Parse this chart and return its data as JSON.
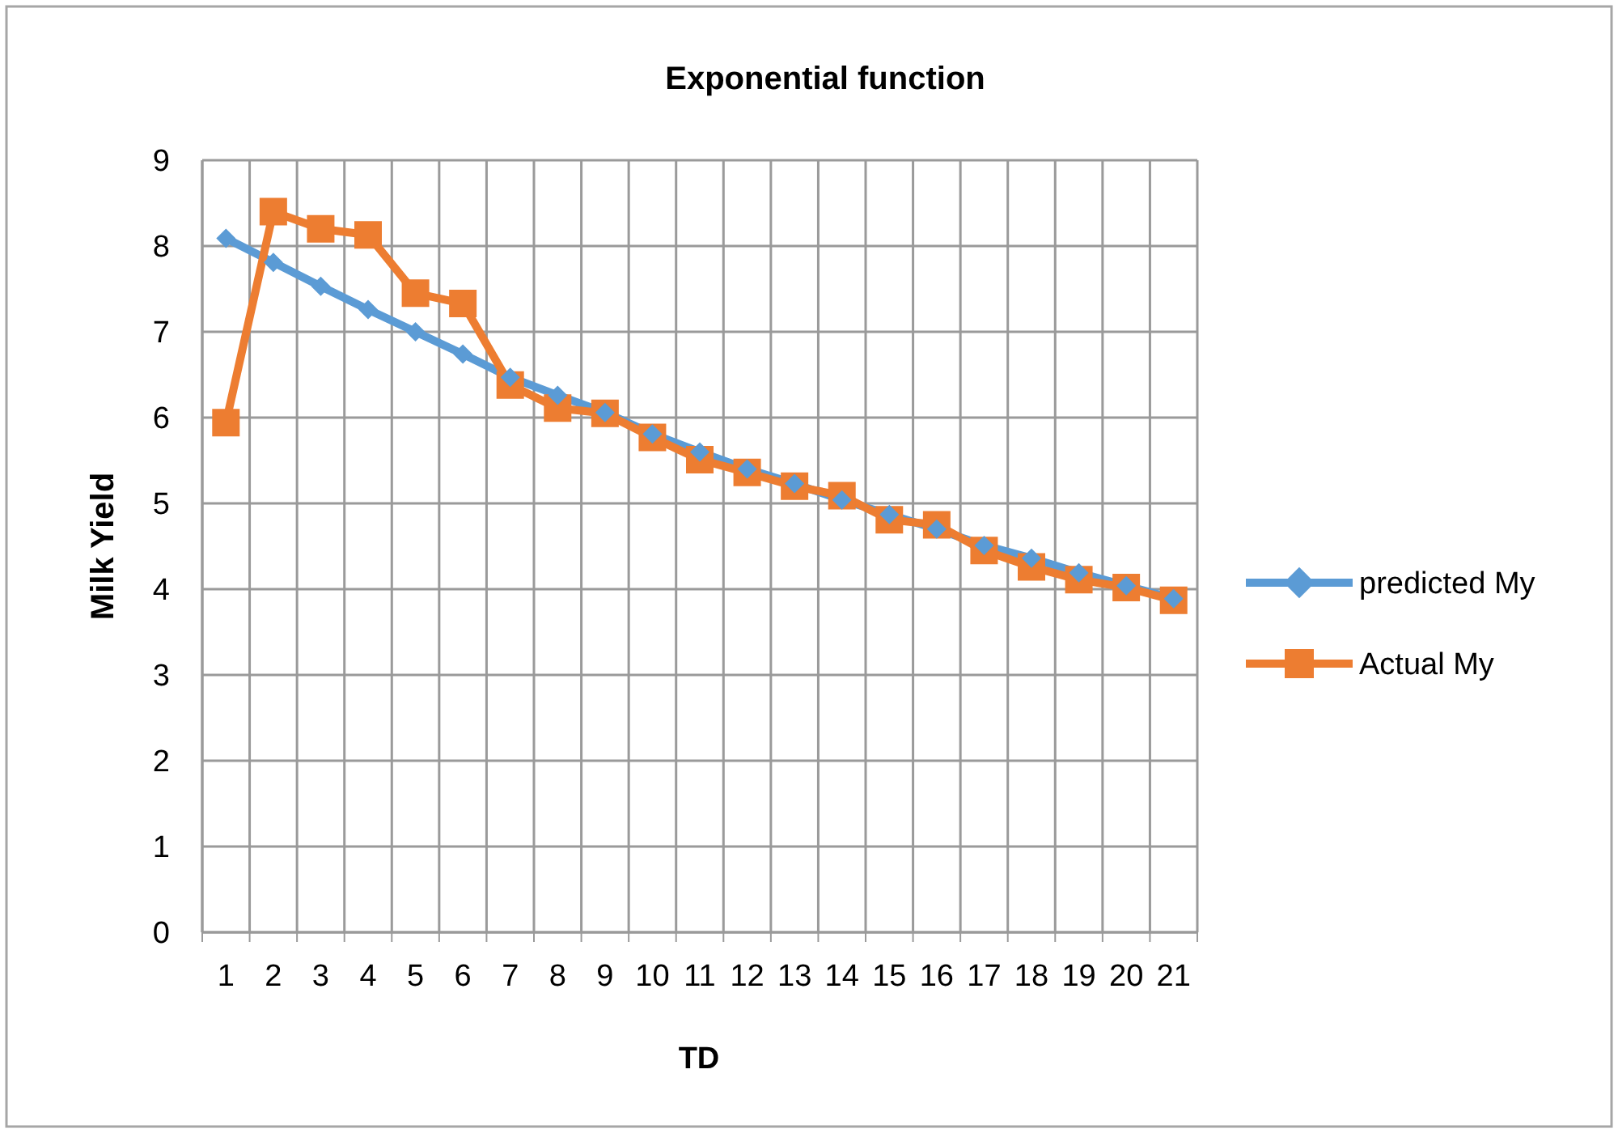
{
  "chart_data": {
    "type": "line",
    "title": "Exponential function",
    "xlabel": "TD",
    "ylabel": "Milk  Yield",
    "categories": [
      "1",
      "2",
      "3",
      "4",
      "5",
      "6",
      "7",
      "8",
      "9",
      "10",
      "11",
      "12",
      "13",
      "14",
      "15",
      "16",
      "17",
      "18",
      "19",
      "20",
      "21"
    ],
    "series": [
      {
        "name": "predicted My",
        "color": "#5b9bd5",
        "marker": "diamond",
        "values": [
          8.09,
          7.81,
          7.53,
          7.26,
          7.0,
          6.74,
          6.47,
          6.26,
          6.06,
          5.81,
          5.6,
          5.4,
          5.23,
          5.04,
          4.87,
          4.7,
          4.51,
          4.36,
          4.19,
          4.04,
          3.89
        ]
      },
      {
        "name": "Actual   My",
        "color": "#ed7d31",
        "marker": "square",
        "values": [
          5.94,
          8.4,
          8.2,
          8.13,
          7.45,
          7.33,
          6.38,
          6.11,
          6.05,
          5.77,
          5.51,
          5.36,
          5.2,
          5.09,
          4.81,
          4.75,
          4.45,
          4.26,
          4.11,
          4.02,
          3.87
        ]
      }
    ],
    "ylim": [
      0,
      9
    ],
    "yticks": [
      0,
      1,
      2,
      3,
      4,
      5,
      6,
      7,
      8,
      9
    ],
    "grid": true,
    "legend": "right"
  }
}
